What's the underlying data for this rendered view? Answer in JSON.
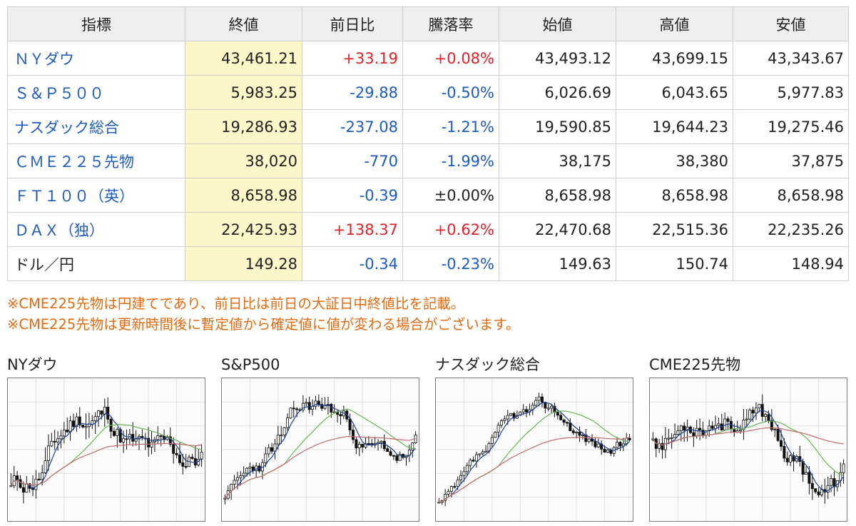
{
  "table": {
    "headers": [
      "指標",
      "終値",
      "前日比",
      "騰落率",
      "始値",
      "高値",
      "安値"
    ],
    "rows": [
      {
        "name": "ＮＹダウ",
        "link": true,
        "close": "43,461.21",
        "change": "+33.19",
        "pct": "+0.08%",
        "dir": "up",
        "open": "43,493.12",
        "high": "43,699.15",
        "low": "43,343.67"
      },
      {
        "name": "Ｓ＆Ｐ５００",
        "link": true,
        "close": "5,983.25",
        "change": "-29.88",
        "pct": "-0.50%",
        "dir": "down",
        "open": "6,026.69",
        "high": "6,043.65",
        "low": "5,977.83"
      },
      {
        "name": "ナスダック総合",
        "link": true,
        "close": "19,286.93",
        "change": "-237.08",
        "pct": "-1.21%",
        "dir": "down",
        "open": "19,590.85",
        "high": "19,644.23",
        "low": "19,275.46"
      },
      {
        "name": "ＣＭＥ２２５先物",
        "link": true,
        "close": "38,020",
        "change": "-770",
        "pct": "-1.99%",
        "dir": "down",
        "open": "38,175",
        "high": "38,380",
        "low": "37,875"
      },
      {
        "name": "ＦＴ１００（英）",
        "link": true,
        "close": "8,658.98",
        "change": "-0.39",
        "pct": "±0.00%",
        "dir": "mixed",
        "open": "8,658.98",
        "high": "8,658.98",
        "low": "8,658.98"
      },
      {
        "name": "ＤＡＸ（独）",
        "link": true,
        "close": "22,425.93",
        "change": "+138.37",
        "pct": "+0.62%",
        "dir": "up",
        "open": "22,470.68",
        "high": "22,515.36",
        "low": "22,235.26"
      },
      {
        "name": "ドル／円",
        "link": false,
        "close": "149.28",
        "change": "-0.34",
        "pct": "-0.23%",
        "dir": "down",
        "open": "149.63",
        "high": "150.74",
        "low": "148.94"
      }
    ]
  },
  "notes": [
    "※CME225先物は円建てであり、前日比は前日の大証日中終値比を記載。",
    "※CME225先物は更新時間後に暫定値から確定値に値が変わる場合がございます。"
  ],
  "charts": [
    {
      "title": "NYダウ"
    },
    {
      "title": "S&P500"
    },
    {
      "title": "ナスダック総合"
    },
    {
      "title": "CME225先物"
    }
  ],
  "colors": {
    "up": "#e0222b",
    "down": "#1d5bbf",
    "link": "#1d5bbf",
    "note": "#e26b12",
    "close_highlight": "#fcf7c9",
    "header_bg": "#eeeeee",
    "ma_short": "#1f3f9a",
    "ma_mid": "#6db35a",
    "ma_long": "#c06b6b"
  }
}
